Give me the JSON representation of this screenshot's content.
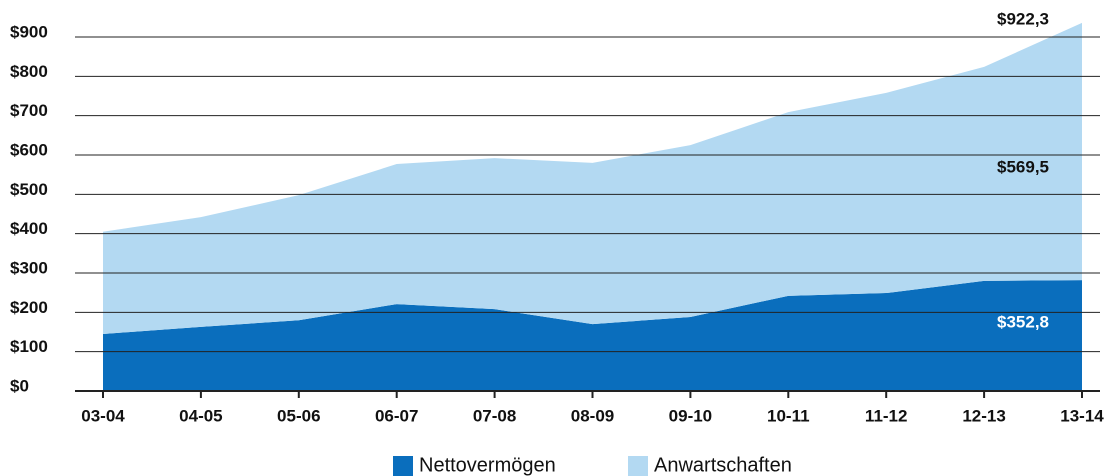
{
  "chart_data": {
    "type": "stacked_area",
    "categories": [
      "03-04",
      "04-05",
      "05-06",
      "06-07",
      "07-08",
      "08-09",
      "09-10",
      "10-11",
      "11-12",
      "12-13",
      "13-14"
    ],
    "series": [
      {
        "name": "Nettovermögen",
        "color": "#0a6ebd",
        "values": [
          145,
          163,
          180,
          221,
          208,
          170,
          188,
          242,
          249,
          280,
          282
        ]
      },
      {
        "name": "Anwartschaften",
        "color": "#b3d9f2",
        "values": [
          260,
          279,
          318,
          356,
          384,
          410,
          437,
          467,
          509,
          544,
          654
        ]
      }
    ],
    "ylim": [
      0,
      900
    ],
    "yticks": [
      {
        "value": 0,
        "label": "$0"
      },
      {
        "value": 100,
        "label": "$100"
      },
      {
        "value": 200,
        "label": "$200"
      },
      {
        "value": 300,
        "label": "$300"
      },
      {
        "value": 400,
        "label": "$400"
      },
      {
        "value": 500,
        "label": "$500"
      },
      {
        "value": 600,
        "label": "$600"
      },
      {
        "value": 700,
        "label": "$700"
      },
      {
        "value": 800,
        "label": "$800"
      },
      {
        "value": 900,
        "label": "$900"
      }
    ],
    "grid": true,
    "annotations": [
      "$922,3",
      "$569,5",
      "$352,8"
    ],
    "legend": "bottom"
  }
}
